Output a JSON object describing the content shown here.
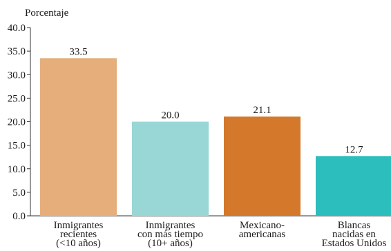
{
  "chart_data": {
    "type": "bar",
    "ylabel": "Porcentaje",
    "ylim": [
      0,
      40
    ],
    "yticks": [
      "0.0",
      "5.0",
      "10.0",
      "15.0",
      "20.0",
      "25.0",
      "30.0",
      "35.0",
      "40.0"
    ],
    "categories": [
      [
        "Inmigrantes",
        "recientes",
        "(<10 años)"
      ],
      [
        "Inmigrantes",
        "con más tiempo",
        "(10+ años)"
      ],
      [
        "Mexicano-",
        "americanas"
      ],
      [
        "Blancas",
        "nacidas en",
        "Estados Unidos"
      ]
    ],
    "values": [
      33.5,
      20.0,
      21.1,
      12.7
    ],
    "value_labels": [
      "33.5",
      "20.0",
      "21.1",
      "12.7"
    ],
    "colors": [
      "#e6ae7b",
      "#99d6d6",
      "#d4782b",
      "#2cbdbd"
    ],
    "grid": false
  }
}
